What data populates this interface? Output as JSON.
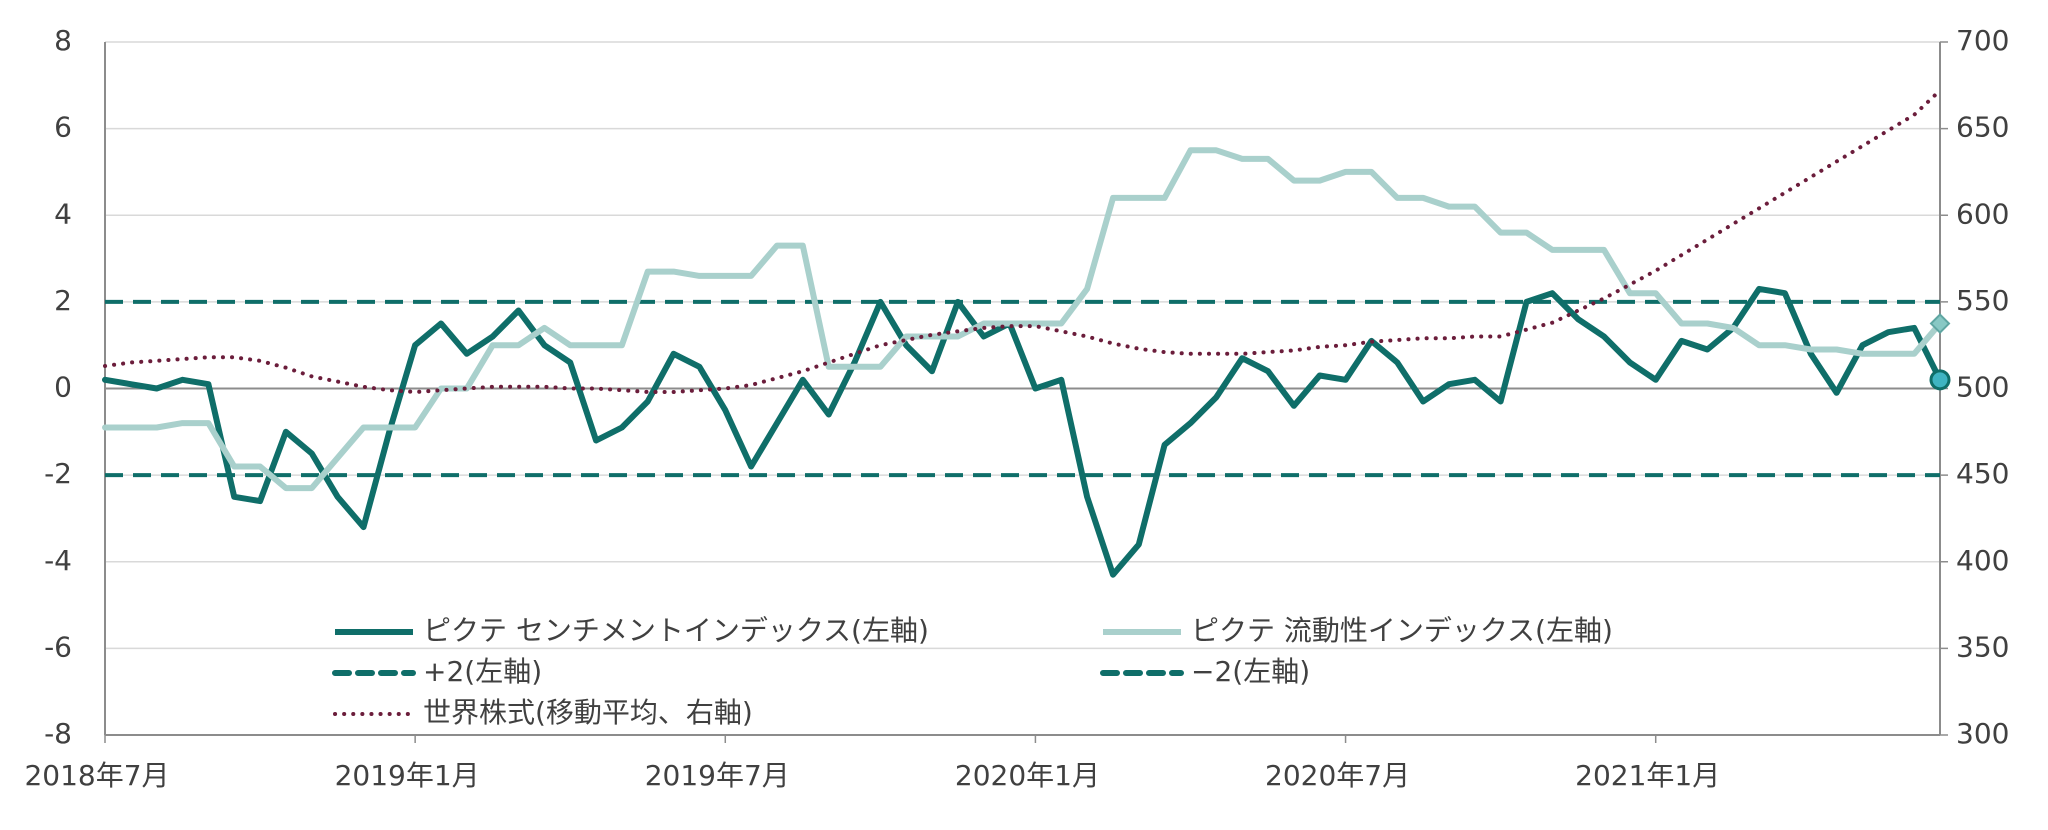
{
  "chart_data": {
    "type": "line",
    "categories": [
      "2018年7月",
      null,
      null,
      null,
      null,
      null,
      null,
      null,
      null,
      null,
      null,
      null,
      "2019年1月",
      null,
      null,
      null,
      null,
      null,
      null,
      null,
      null,
      null,
      null,
      null,
      "2019年7月",
      null,
      null,
      null,
      null,
      null,
      null,
      null,
      null,
      null,
      null,
      null,
      "2020年1月",
      null,
      null,
      null,
      null,
      null,
      null,
      null,
      null,
      null,
      null,
      null,
      "2020年7月",
      null,
      null,
      null,
      null,
      null,
      null,
      null,
      null,
      null,
      null,
      null,
      "2021年1月",
      null,
      null,
      null,
      null,
      null,
      null,
      null,
      null,
      null,
      null,
      null
    ],
    "series": [
      {
        "name": "ピクテ センチメントインデックス(左軸)",
        "color": "#0f6e69",
        "style": "solid",
        "end_marker": "circle",
        "values": [
          0.2,
          0.1,
          0.0,
          0.2,
          0.1,
          -2.5,
          -2.6,
          -1.0,
          -1.5,
          -2.5,
          -3.2,
          -1.0,
          1.0,
          1.5,
          0.8,
          1.2,
          1.8,
          1.0,
          0.6,
          -1.2,
          -0.9,
          -0.3,
          0.8,
          0.5,
          -0.5,
          -1.8,
          -0.8,
          0.2,
          -0.6,
          0.6,
          2.0,
          1.0,
          0.4,
          2.0,
          1.2,
          1.5,
          0.0,
          0.2,
          -2.5,
          -4.3,
          -3.6,
          -1.3,
          -0.8,
          -0.2,
          0.7,
          0.4,
          -0.4,
          0.3,
          0.2,
          1.1,
          0.6,
          -0.3,
          0.1,
          0.2,
          -0.3,
          2.0,
          2.2,
          1.6,
          1.2,
          0.6,
          0.2,
          1.1,
          0.9,
          1.4,
          2.3,
          2.2,
          0.8,
          -0.1,
          1.0,
          1.3,
          1.4,
          0.2
        ]
      },
      {
        "name": "ピクテ 流動性インデックス(左軸)",
        "color": "#a9d0cc",
        "style": "solid",
        "end_marker": "diamond",
        "values": [
          -0.9,
          -0.9,
          -0.9,
          -0.8,
          -0.8,
          -1.8,
          -1.8,
          -2.3,
          -2.3,
          -1.6,
          -0.9,
          -0.9,
          -0.9,
          0.0,
          0.0,
          1.0,
          1.0,
          1.4,
          1.0,
          1.0,
          1.0,
          2.7,
          2.7,
          2.6,
          2.6,
          2.6,
          3.3,
          3.3,
          0.5,
          0.5,
          0.5,
          1.2,
          1.2,
          1.2,
          1.5,
          1.5,
          1.5,
          1.5,
          2.3,
          4.4,
          4.4,
          4.4,
          5.5,
          5.5,
          5.3,
          5.3,
          4.8,
          4.8,
          5.0,
          5.0,
          4.4,
          4.4,
          4.2,
          4.2,
          3.6,
          3.6,
          3.2,
          3.2,
          3.2,
          2.2,
          2.2,
          1.5,
          1.5,
          1.4,
          1.0,
          1.0,
          0.9,
          0.9,
          0.8,
          0.8,
          0.8,
          1.5
        ]
      },
      {
        "name": "世界株式(移動平均、右軸)",
        "color": "#6b1d3b",
        "style": "dotted",
        "axis": "y2",
        "values": [
          513,
          515,
          516,
          517,
          518,
          518,
          516,
          512,
          507,
          504,
          501,
          499,
          498,
          499,
          500,
          501,
          501,
          501,
          500,
          500,
          499,
          498,
          498,
          499,
          500,
          502,
          506,
          510,
          515,
          520,
          525,
          528,
          531,
          533,
          535,
          536,
          536,
          533,
          530,
          526,
          523,
          521,
          520,
          520,
          520,
          521,
          522,
          524,
          525,
          527,
          528,
          529,
          529,
          530,
          530,
          534,
          538,
          545,
          552,
          560,
          568,
          577,
          586,
          595,
          604,
          613,
          622,
          631,
          640,
          649,
          658,
          672
        ]
      }
    ],
    "hlines": [
      {
        "name": "+2(左軸)",
        "value": 2,
        "color": "#0f6e69",
        "style": "dashed"
      },
      {
        "name": "−2(左軸)",
        "value": -2,
        "color": "#0f6e69",
        "style": "dashed"
      }
    ],
    "ylim": [
      -8,
      8
    ],
    "yticks": [
      -8,
      -6,
      -4,
      -2,
      0,
      2,
      4,
      6,
      8
    ],
    "y2lim": [
      300,
      700
    ],
    "y2ticks": [
      300,
      350,
      400,
      450,
      500,
      550,
      600,
      650,
      700
    ],
    "grid": true
  }
}
